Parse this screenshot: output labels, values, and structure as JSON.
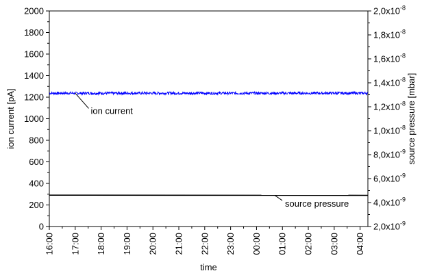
{
  "chart_data": {
    "type": "line",
    "title": "",
    "xlabel": "time",
    "ylabel_left": "ion current [pA]",
    "ylabel_right": "source pressure [mbar]",
    "x_categories": [
      "16:00",
      "17:00",
      "18:00",
      "19:00",
      "20:00",
      "21:00",
      "22:00",
      "23:00",
      "00:00",
      "01:00",
      "02:00",
      "03:00",
      "04:00"
    ],
    "x_domain_hours": [
      0,
      12.3
    ],
    "ylim_left": [
      0,
      2000
    ],
    "yticks_left": [
      0,
      200,
      400,
      600,
      800,
      1000,
      1200,
      1400,
      1600,
      1800,
      2000
    ],
    "ylim_right": [
      2e-09,
      2e-08
    ],
    "yticks_right": [
      {
        "value": 2e-09,
        "mantissa": "2,0x10",
        "exp": "-9"
      },
      {
        "value": 4e-09,
        "mantissa": "4,0x10",
        "exp": "-9"
      },
      {
        "value": 6e-09,
        "mantissa": "6,0x10",
        "exp": "-9"
      },
      {
        "value": 8e-09,
        "mantissa": "8,0x10",
        "exp": "-9"
      },
      {
        "value": 1e-08,
        "mantissa": "1,0x10",
        "exp": "-8"
      },
      {
        "value": 1.2e-08,
        "mantissa": "1,2x10",
        "exp": "-8"
      },
      {
        "value": 1.4e-08,
        "mantissa": "1,4x10",
        "exp": "-8"
      },
      {
        "value": 1.6e-08,
        "mantissa": "1,6x10",
        "exp": "-8"
      },
      {
        "value": 1.8e-08,
        "mantissa": "1,8x10",
        "exp": "-8"
      },
      {
        "value": 2e-08,
        "mantissa": "2,0x10",
        "exp": "-8"
      }
    ],
    "series": [
      {
        "name": "ion current",
        "axis": "left",
        "color": "#0000ff",
        "mean": 1237,
        "noise": 12,
        "x_range": [
          0,
          12.3
        ]
      },
      {
        "name": "source pressure",
        "axis": "right",
        "color": "#000000",
        "x": [
          0,
          12.3
        ],
        "y": [
          4.62e-09,
          4.6e-09
        ]
      }
    ],
    "annotations": [
      {
        "text": "ion current",
        "series": 0
      },
      {
        "text": "source pressure",
        "series": 1
      }
    ],
    "grid": false
  }
}
